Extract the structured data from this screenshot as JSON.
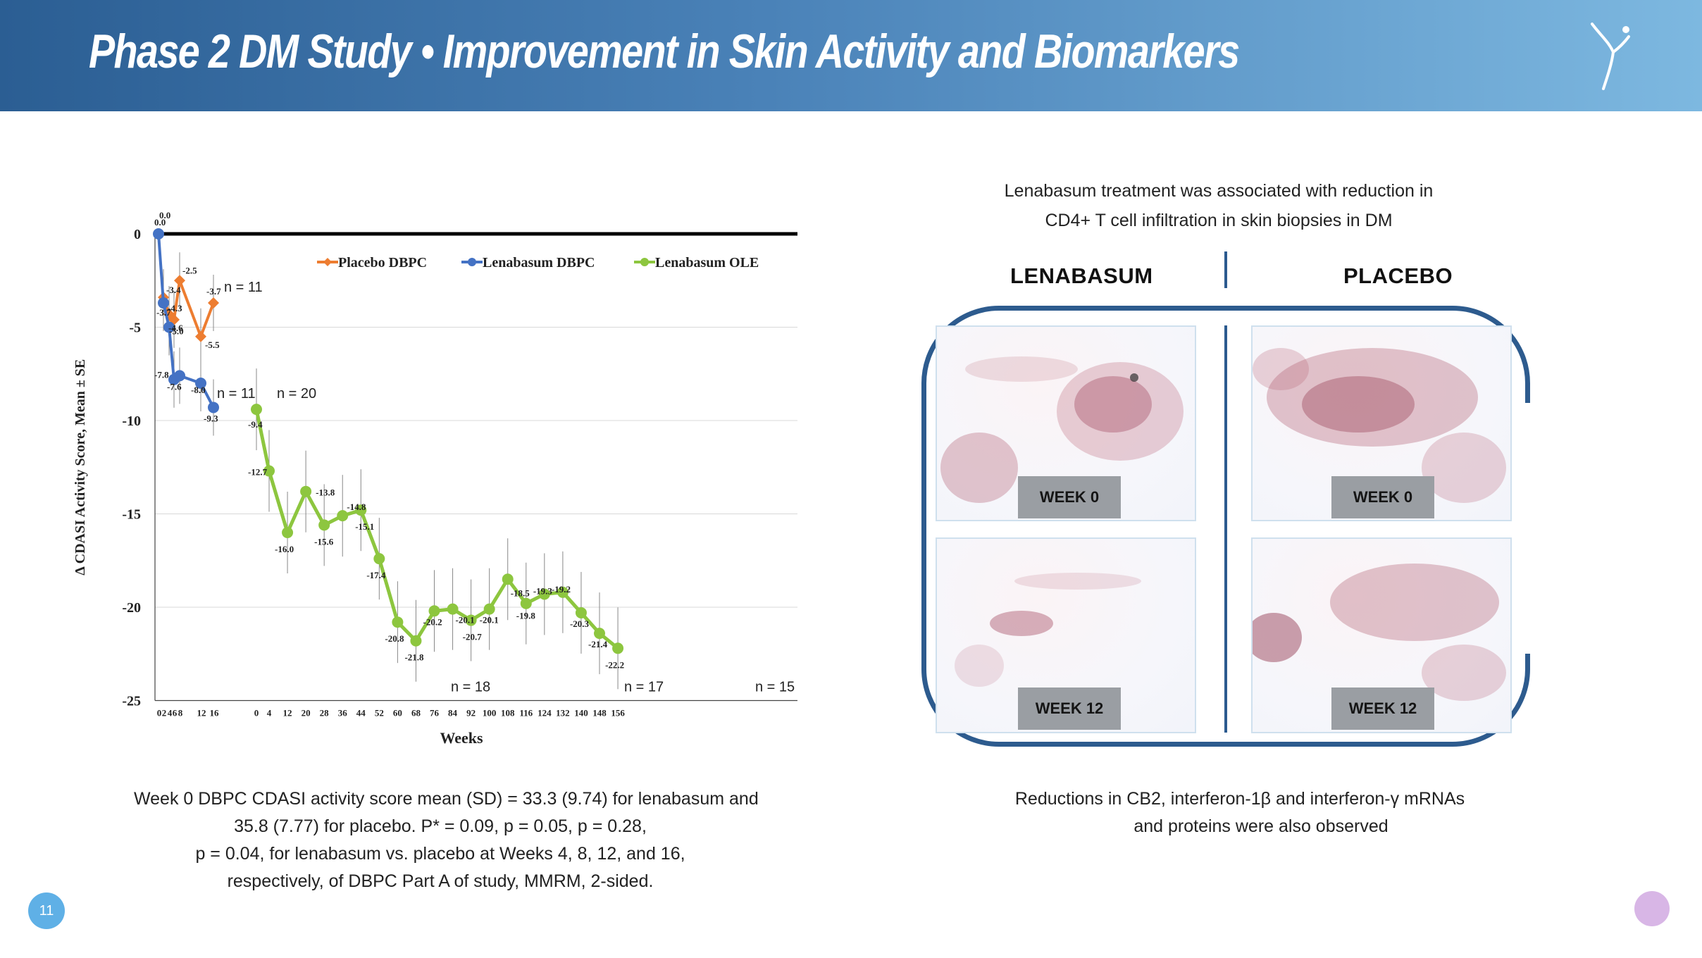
{
  "header": {
    "title": "Phase 2 DM Study • Improvement in Skin Activity and Biomarkers"
  },
  "chart_data": {
    "type": "line",
    "xlabel": "Weeks",
    "ylabel": "Δ CDASI Activity Score, Mean ± SE",
    "ylim": [
      -25,
      0
    ],
    "yticks": [
      0,
      -5,
      -10,
      -15,
      -20,
      -25
    ],
    "grid": true,
    "legend_position": "top",
    "series": [
      {
        "name": "Placebo DBPC",
        "color": "#ed7d31",
        "points": [
          {
            "x": "2",
            "y": -3.4,
            "label": "-3.4"
          },
          {
            "x": "4",
            "y": -4.3,
            "label": "-4.3"
          },
          {
            "x": "6",
            "y": -4.6,
            "label": "-4.6"
          },
          {
            "x": "8",
            "y": -2.5,
            "label": "-2.5"
          },
          {
            "x": "12",
            "y": -5.5,
            "label": "-5.5"
          },
          {
            "x": "16",
            "y": -3.7,
            "label": "-3.7"
          }
        ]
      },
      {
        "name": "Lenabasum DBPC",
        "color": "#4472c4",
        "points": [
          {
            "x": "0",
            "y": 0.0,
            "label": "0.0"
          },
          {
            "x": "2",
            "y": -3.7,
            "label": "-3.7"
          },
          {
            "x": "4",
            "y": -5.0,
            "label": "-5.0"
          },
          {
            "x": "6",
            "y": -7.8,
            "label": "-7.8"
          },
          {
            "x": "8",
            "y": -7.6,
            "label": "-7.6"
          },
          {
            "x": "12",
            "y": -8.0,
            "label": "-8.0"
          },
          {
            "x": "16",
            "y": -9.3,
            "label": "-9.3"
          }
        ]
      },
      {
        "name": "Lenabasum OLE",
        "color": "#8dc63f",
        "points": [
          {
            "x": "0",
            "y": -9.4,
            "label": "-9.4"
          },
          {
            "x": "4",
            "y": -12.7,
            "label": "-12.7"
          },
          {
            "x": "12",
            "y": -16.0,
            "label": "-16.0"
          },
          {
            "x": "20",
            "y": -13.8,
            "label": "-13.8"
          },
          {
            "x": "28",
            "y": -15.6,
            "label": "-15.6"
          },
          {
            "x": "36",
            "y": -15.1,
            "label": "-15.1"
          },
          {
            "x": "44",
            "y": -14.8,
            "label": "-14.8"
          },
          {
            "x": "52",
            "y": -17.4,
            "label": "-17.4"
          },
          {
            "x": "60",
            "y": -20.8,
            "label": "-20.8"
          },
          {
            "x": "68",
            "y": -21.8,
            "label": "-21.8"
          },
          {
            "x": "76",
            "y": -20.2,
            "label": "-20.2"
          },
          {
            "x": "84",
            "y": -20.1,
            "label": "-20.1"
          },
          {
            "x": "92",
            "y": -20.7,
            "label": "-20.7"
          },
          {
            "x": "100",
            "y": -20.1,
            "label": "-20.1"
          },
          {
            "x": "108",
            "y": -18.5,
            "label": "-18.5"
          },
          {
            "x": "116",
            "y": -19.8,
            "label": "-19.8"
          },
          {
            "x": "124",
            "y": -19.3,
            "label": "-19.3"
          },
          {
            "x": "132",
            "y": -19.2,
            "label": "-19.2"
          },
          {
            "x": "140",
            "y": -20.3,
            "label": "-20.3"
          },
          {
            "x": "148",
            "y": -21.4,
            "label": "-21.4"
          },
          {
            "x": "156",
            "y": -22.2,
            "label": "-22.2"
          }
        ]
      }
    ],
    "dbpc_x_tick_labels": [
      "0",
      "2",
      "4",
      "6",
      "8",
      "12",
      "16"
    ],
    "ole_x_tick_labels": [
      "0",
      "4",
      "12",
      "20",
      "28",
      "36",
      "44",
      "52",
      "60",
      "68",
      "76",
      "84",
      "92",
      "100",
      "108",
      "116",
      "124",
      "132",
      "140",
      "148",
      "156"
    ],
    "baseline_label": "0.0",
    "annotations": [
      "n = 11",
      "n = 11",
      "n = 20",
      "n =  18",
      "n = 17",
      "n = 15"
    ]
  },
  "left_caption": [
    "Week 0 DBPC CDASI activity score mean (SD) = 33.3 (9.74) for lenabasum and",
    "35.8 (7.77) for placebo. P* = 0.09, p = 0.05, p = 0.28,",
    "p = 0.04, for lenabasum vs. placebo at Weeks 4, 8, 12, and 16,",
    "respectively, of DBPC Part A of study, MMRM, 2-sided."
  ],
  "right_intro": [
    "Lenabasum treatment was associated with reduction in",
    "CD4+ T cell infiltration in skin biopsies in DM"
  ],
  "biopsy": {
    "col_left": "LENABASUM",
    "col_right": "PLACEBO",
    "panels": [
      "WEEK 0",
      "WEEK 0",
      "WEEK 12",
      "WEEK 12"
    ]
  },
  "right_caption": [
    "Reductions in CB2, interferon-1β and interferon-γ mRNAs",
    "and proteins were also observed"
  ],
  "footer": {
    "page_number": "11"
  }
}
